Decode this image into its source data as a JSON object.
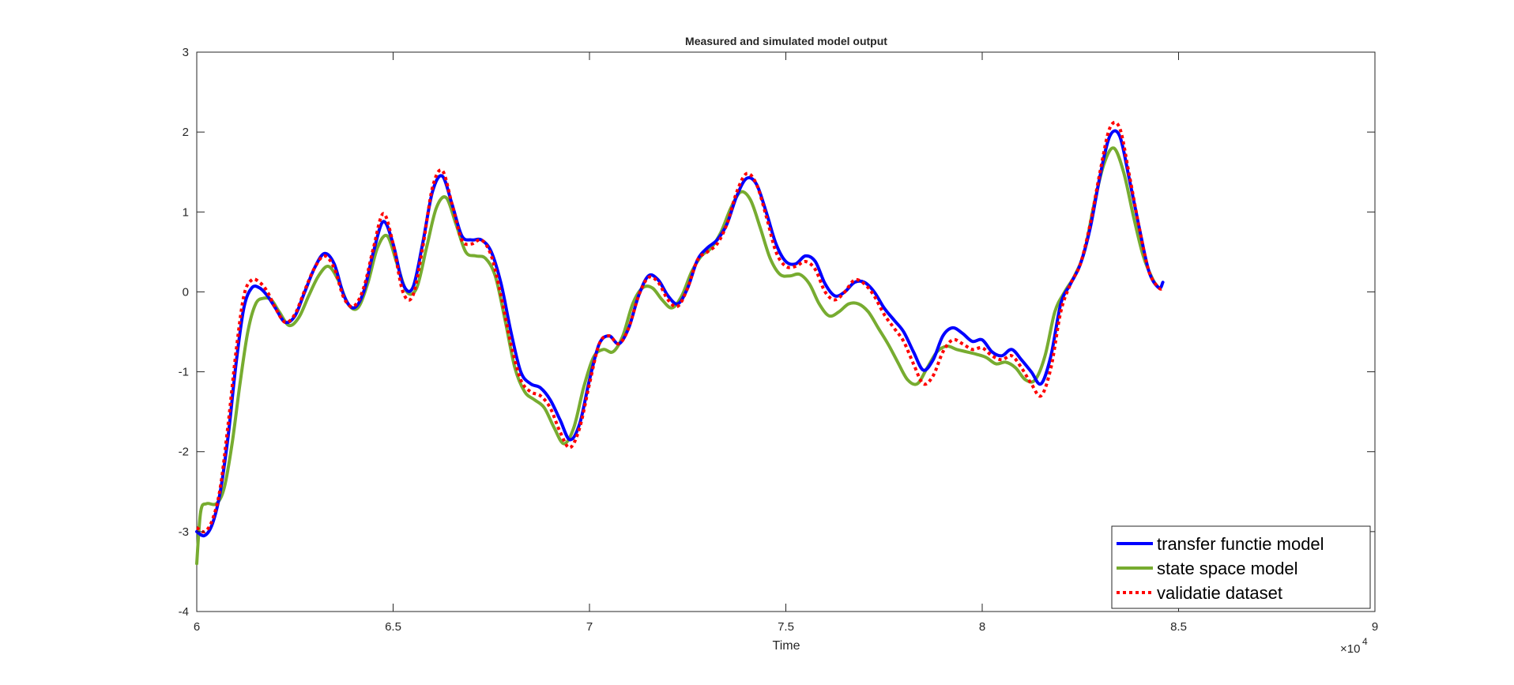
{
  "chart_data": {
    "type": "line",
    "title": "Measured and simulated model output",
    "xlabel": "Time",
    "ylabel": "",
    "x_exponent_label": "×10",
    "x_exponent_power": "4",
    "xlim": [
      60000,
      90000
    ],
    "ylim": [
      -4,
      3
    ],
    "x_ticks": [
      60000,
      65000,
      70000,
      75000,
      80000,
      85000,
      90000
    ],
    "x_tick_labels": [
      "6",
      "6.5",
      "7",
      "7.5",
      "8",
      "8.5",
      "9"
    ],
    "y_ticks": [
      -4,
      -3,
      -2,
      -1,
      0,
      1,
      2,
      3
    ],
    "y_tick_labels": [
      "-4",
      "-3",
      "-2",
      "-1",
      "0",
      "1",
      "2",
      "3"
    ],
    "grid": false,
    "legend_position": "bottom-right",
    "series": [
      {
        "name": "transfer functie model",
        "color": "#0000ff",
        "style": "solid",
        "points": [
          [
            60000,
            -3.0
          ],
          [
            60200,
            -3.05
          ],
          [
            60400,
            -2.9
          ],
          [
            60600,
            -2.5
          ],
          [
            60800,
            -1.8
          ],
          [
            61000,
            -0.9
          ],
          [
            61200,
            -0.2
          ],
          [
            61400,
            0.05
          ],
          [
            61600,
            0.05
          ],
          [
            61800,
            -0.05
          ],
          [
            62000,
            -0.2
          ],
          [
            62250,
            -0.38
          ],
          [
            62500,
            -0.3
          ],
          [
            62750,
            0.0
          ],
          [
            63000,
            0.3
          ],
          [
            63250,
            0.48
          ],
          [
            63500,
            0.35
          ],
          [
            63750,
            -0.05
          ],
          [
            64000,
            -0.2
          ],
          [
            64250,
            0.0
          ],
          [
            64500,
            0.5
          ],
          [
            64750,
            0.88
          ],
          [
            65000,
            0.6
          ],
          [
            65250,
            0.1
          ],
          [
            65500,
            0.05
          ],
          [
            65750,
            0.6
          ],
          [
            66000,
            1.25
          ],
          [
            66250,
            1.45
          ],
          [
            66500,
            1.1
          ],
          [
            66750,
            0.7
          ],
          [
            67000,
            0.65
          ],
          [
            67250,
            0.65
          ],
          [
            67500,
            0.5
          ],
          [
            67750,
            0.1
          ],
          [
            68000,
            -0.5
          ],
          [
            68250,
            -1.0
          ],
          [
            68500,
            -1.15
          ],
          [
            68750,
            -1.2
          ],
          [
            69000,
            -1.35
          ],
          [
            69250,
            -1.6
          ],
          [
            69500,
            -1.85
          ],
          [
            69750,
            -1.65
          ],
          [
            70000,
            -1.1
          ],
          [
            70250,
            -0.65
          ],
          [
            70500,
            -0.55
          ],
          [
            70750,
            -0.65
          ],
          [
            71000,
            -0.45
          ],
          [
            71250,
            -0.05
          ],
          [
            71500,
            0.2
          ],
          [
            71750,
            0.15
          ],
          [
            72000,
            -0.05
          ],
          [
            72250,
            -0.15
          ],
          [
            72500,
            0.05
          ],
          [
            72750,
            0.4
          ],
          [
            73000,
            0.55
          ],
          [
            73250,
            0.65
          ],
          [
            73500,
            0.85
          ],
          [
            73750,
            1.2
          ],
          [
            74000,
            1.42
          ],
          [
            74250,
            1.35
          ],
          [
            74500,
            1.0
          ],
          [
            74750,
            0.6
          ],
          [
            75000,
            0.38
          ],
          [
            75250,
            0.35
          ],
          [
            75500,
            0.45
          ],
          [
            75750,
            0.38
          ],
          [
            76000,
            0.1
          ],
          [
            76250,
            -0.05
          ],
          [
            76500,
            0.0
          ],
          [
            76750,
            0.12
          ],
          [
            77000,
            0.12
          ],
          [
            77250,
            0.0
          ],
          [
            77500,
            -0.2
          ],
          [
            77750,
            -0.35
          ],
          [
            78000,
            -0.5
          ],
          [
            78250,
            -0.75
          ],
          [
            78500,
            -0.98
          ],
          [
            78750,
            -0.85
          ],
          [
            79000,
            -0.55
          ],
          [
            79250,
            -0.45
          ],
          [
            79500,
            -0.52
          ],
          [
            79750,
            -0.62
          ],
          [
            80000,
            -0.6
          ],
          [
            80250,
            -0.75
          ],
          [
            80500,
            -0.8
          ],
          [
            80750,
            -0.72
          ],
          [
            81000,
            -0.85
          ],
          [
            81250,
            -1.0
          ],
          [
            81500,
            -1.15
          ],
          [
            81750,
            -0.8
          ],
          [
            82000,
            -0.15
          ],
          [
            82250,
            0.1
          ],
          [
            82500,
            0.35
          ],
          [
            82750,
            0.8
          ],
          [
            83000,
            1.45
          ],
          [
            83250,
            1.95
          ],
          [
            83500,
            1.95
          ],
          [
            83750,
            1.4
          ],
          [
            84000,
            0.8
          ],
          [
            84250,
            0.25
          ],
          [
            84500,
            0.05
          ],
          [
            84600,
            0.12
          ]
        ]
      },
      {
        "name": "state space model",
        "color": "#77ac30",
        "style": "solid",
        "points": [
          [
            60000,
            -3.4
          ],
          [
            60100,
            -2.75
          ],
          [
            60250,
            -2.65
          ],
          [
            60500,
            -2.65
          ],
          [
            60700,
            -2.45
          ],
          [
            60900,
            -1.9
          ],
          [
            61100,
            -1.15
          ],
          [
            61300,
            -0.5
          ],
          [
            61500,
            -0.15
          ],
          [
            61700,
            -0.08
          ],
          [
            61900,
            -0.1
          ],
          [
            62100,
            -0.25
          ],
          [
            62350,
            -0.42
          ],
          [
            62600,
            -0.32
          ],
          [
            62850,
            -0.05
          ],
          [
            63100,
            0.2
          ],
          [
            63350,
            0.32
          ],
          [
            63600,
            0.15
          ],
          [
            63850,
            -0.15
          ],
          [
            64100,
            -0.2
          ],
          [
            64350,
            0.1
          ],
          [
            64600,
            0.55
          ],
          [
            64850,
            0.7
          ],
          [
            65100,
            0.35
          ],
          [
            65350,
            0.0
          ],
          [
            65600,
            0.05
          ],
          [
            65850,
            0.55
          ],
          [
            66100,
            1.05
          ],
          [
            66350,
            1.18
          ],
          [
            66600,
            0.85
          ],
          [
            66850,
            0.5
          ],
          [
            67100,
            0.45
          ],
          [
            67350,
            0.42
          ],
          [
            67600,
            0.2
          ],
          [
            67850,
            -0.35
          ],
          [
            68100,
            -0.95
          ],
          [
            68350,
            -1.25
          ],
          [
            68600,
            -1.35
          ],
          [
            68850,
            -1.45
          ],
          [
            69100,
            -1.7
          ],
          [
            69350,
            -1.9
          ],
          [
            69600,
            -1.7
          ],
          [
            69850,
            -1.2
          ],
          [
            70100,
            -0.82
          ],
          [
            70350,
            -0.72
          ],
          [
            70600,
            -0.75
          ],
          [
            70850,
            -0.55
          ],
          [
            71100,
            -0.15
          ],
          [
            71350,
            0.05
          ],
          [
            71600,
            0.05
          ],
          [
            71850,
            -0.1
          ],
          [
            72100,
            -0.2
          ],
          [
            72350,
            -0.05
          ],
          [
            72600,
            0.25
          ],
          [
            72850,
            0.45
          ],
          [
            73100,
            0.55
          ],
          [
            73350,
            0.75
          ],
          [
            73600,
            1.05
          ],
          [
            73850,
            1.25
          ],
          [
            74100,
            1.15
          ],
          [
            74350,
            0.8
          ],
          [
            74600,
            0.42
          ],
          [
            74850,
            0.22
          ],
          [
            75100,
            0.2
          ],
          [
            75350,
            0.22
          ],
          [
            75600,
            0.1
          ],
          [
            75850,
            -0.15
          ],
          [
            76100,
            -0.3
          ],
          [
            76350,
            -0.25
          ],
          [
            76600,
            -0.15
          ],
          [
            76850,
            -0.15
          ],
          [
            77100,
            -0.25
          ],
          [
            77350,
            -0.45
          ],
          [
            77600,
            -0.65
          ],
          [
            77850,
            -0.88
          ],
          [
            78100,
            -1.1
          ],
          [
            78350,
            -1.15
          ],
          [
            78600,
            -0.95
          ],
          [
            78850,
            -0.75
          ],
          [
            79100,
            -0.68
          ],
          [
            79350,
            -0.72
          ],
          [
            79600,
            -0.75
          ],
          [
            79850,
            -0.78
          ],
          [
            80100,
            -0.82
          ],
          [
            80350,
            -0.9
          ],
          [
            80600,
            -0.88
          ],
          [
            80850,
            -0.95
          ],
          [
            81100,
            -1.1
          ],
          [
            81350,
            -1.1
          ],
          [
            81600,
            -0.8
          ],
          [
            81850,
            -0.25
          ],
          [
            82100,
            0.0
          ],
          [
            82350,
            0.2
          ],
          [
            82600,
            0.5
          ],
          [
            82850,
            1.1
          ],
          [
            83100,
            1.6
          ],
          [
            83350,
            1.8
          ],
          [
            83600,
            1.5
          ],
          [
            83850,
            0.95
          ],
          [
            84100,
            0.45
          ],
          [
            84350,
            0.15
          ],
          [
            84500,
            0.05
          ]
        ]
      },
      {
        "name": "validatie dataset",
        "color": "#ff0000",
        "style": "dotted",
        "points": [
          [
            60000,
            -2.95
          ],
          [
            60200,
            -3.0
          ],
          [
            60400,
            -2.85
          ],
          [
            60600,
            -2.45
          ],
          [
            60800,
            -1.65
          ],
          [
            61000,
            -0.75
          ],
          [
            61200,
            -0.05
          ],
          [
            61400,
            0.15
          ],
          [
            61600,
            0.12
          ],
          [
            61800,
            0.0
          ],
          [
            62000,
            -0.2
          ],
          [
            62250,
            -0.38
          ],
          [
            62500,
            -0.28
          ],
          [
            62750,
            0.02
          ],
          [
            63000,
            0.3
          ],
          [
            63250,
            0.45
          ],
          [
            63500,
            0.3
          ],
          [
            63750,
            -0.08
          ],
          [
            64000,
            -0.18
          ],
          [
            64250,
            0.05
          ],
          [
            64500,
            0.55
          ],
          [
            64750,
            0.98
          ],
          [
            65000,
            0.6
          ],
          [
            65250,
            0.0
          ],
          [
            65500,
            -0.05
          ],
          [
            65750,
            0.55
          ],
          [
            66000,
            1.3
          ],
          [
            66250,
            1.52
          ],
          [
            66500,
            1.1
          ],
          [
            66750,
            0.65
          ],
          [
            67000,
            0.6
          ],
          [
            67250,
            0.65
          ],
          [
            67500,
            0.45
          ],
          [
            67750,
            -0.05
          ],
          [
            68000,
            -0.65
          ],
          [
            68250,
            -1.1
          ],
          [
            68500,
            -1.25
          ],
          [
            68750,
            -1.3
          ],
          [
            69000,
            -1.45
          ],
          [
            69250,
            -1.75
          ],
          [
            69500,
            -1.95
          ],
          [
            69750,
            -1.7
          ],
          [
            70000,
            -1.15
          ],
          [
            70250,
            -0.65
          ],
          [
            70500,
            -0.55
          ],
          [
            70750,
            -0.65
          ],
          [
            71000,
            -0.45
          ],
          [
            71250,
            -0.05
          ],
          [
            71500,
            0.18
          ],
          [
            71750,
            0.12
          ],
          [
            72000,
            -0.1
          ],
          [
            72250,
            -0.18
          ],
          [
            72500,
            0.05
          ],
          [
            72750,
            0.4
          ],
          [
            73000,
            0.5
          ],
          [
            73250,
            0.6
          ],
          [
            73500,
            0.85
          ],
          [
            73750,
            1.25
          ],
          [
            74000,
            1.48
          ],
          [
            74250,
            1.35
          ],
          [
            74500,
            0.95
          ],
          [
            74750,
            0.5
          ],
          [
            75000,
            0.32
          ],
          [
            75250,
            0.32
          ],
          [
            75500,
            0.38
          ],
          [
            75750,
            0.28
          ],
          [
            76000,
            0.0
          ],
          [
            76250,
            -0.1
          ],
          [
            76500,
            0.0
          ],
          [
            76750,
            0.15
          ],
          [
            77000,
            0.1
          ],
          [
            77250,
            -0.05
          ],
          [
            77500,
            -0.28
          ],
          [
            77750,
            -0.45
          ],
          [
            78000,
            -0.62
          ],
          [
            78250,
            -0.9
          ],
          [
            78500,
            -1.15
          ],
          [
            78750,
            -1.05
          ],
          [
            79000,
            -0.75
          ],
          [
            79250,
            -0.6
          ],
          [
            79500,
            -0.65
          ],
          [
            79750,
            -0.72
          ],
          [
            80000,
            -0.7
          ],
          [
            80250,
            -0.8
          ],
          [
            80500,
            -0.85
          ],
          [
            80750,
            -0.8
          ],
          [
            81000,
            -0.95
          ],
          [
            81250,
            -1.15
          ],
          [
            81500,
            -1.3
          ],
          [
            81750,
            -0.95
          ],
          [
            82000,
            -0.25
          ],
          [
            82250,
            0.1
          ],
          [
            82500,
            0.35
          ],
          [
            82750,
            0.85
          ],
          [
            83000,
            1.5
          ],
          [
            83250,
            2.05
          ],
          [
            83500,
            2.05
          ],
          [
            83750,
            1.45
          ],
          [
            84000,
            0.8
          ],
          [
            84250,
            0.25
          ],
          [
            84500,
            0.05
          ],
          [
            84600,
            0.05
          ]
        ]
      }
    ]
  }
}
